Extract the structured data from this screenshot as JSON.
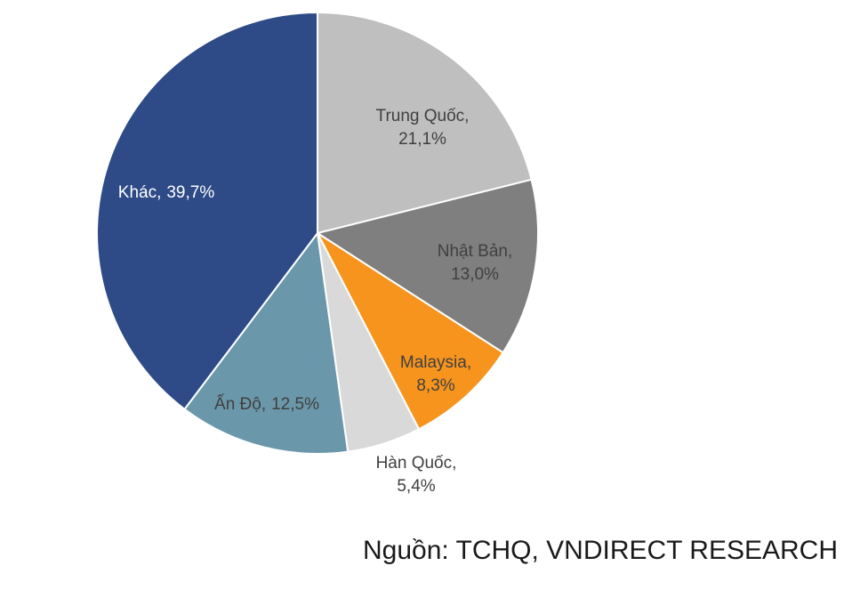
{
  "chart_data": {
    "type": "pie",
    "categories": [
      "Trung Quốc,",
      "Nhật Bản,",
      "Malaysia,",
      "Hàn Quốc,",
      "Ấn Độ,",
      "Khác,"
    ],
    "values": [
      21.1,
      13.0,
      8.3,
      5.4,
      12.5,
      39.7
    ],
    "value_labels": [
      "21,1%",
      "13,0%",
      "8,3%",
      "5,4%",
      "12,5%",
      "39,7%"
    ],
    "colors": [
      "#bfbfbf",
      "#7f7f80",
      "#f7941d",
      "#d9d9d9",
      "#6b97aa",
      "#2e4a87"
    ],
    "source": "Nguồn: TCHQ, VNDIRECT RESEARCH"
  }
}
